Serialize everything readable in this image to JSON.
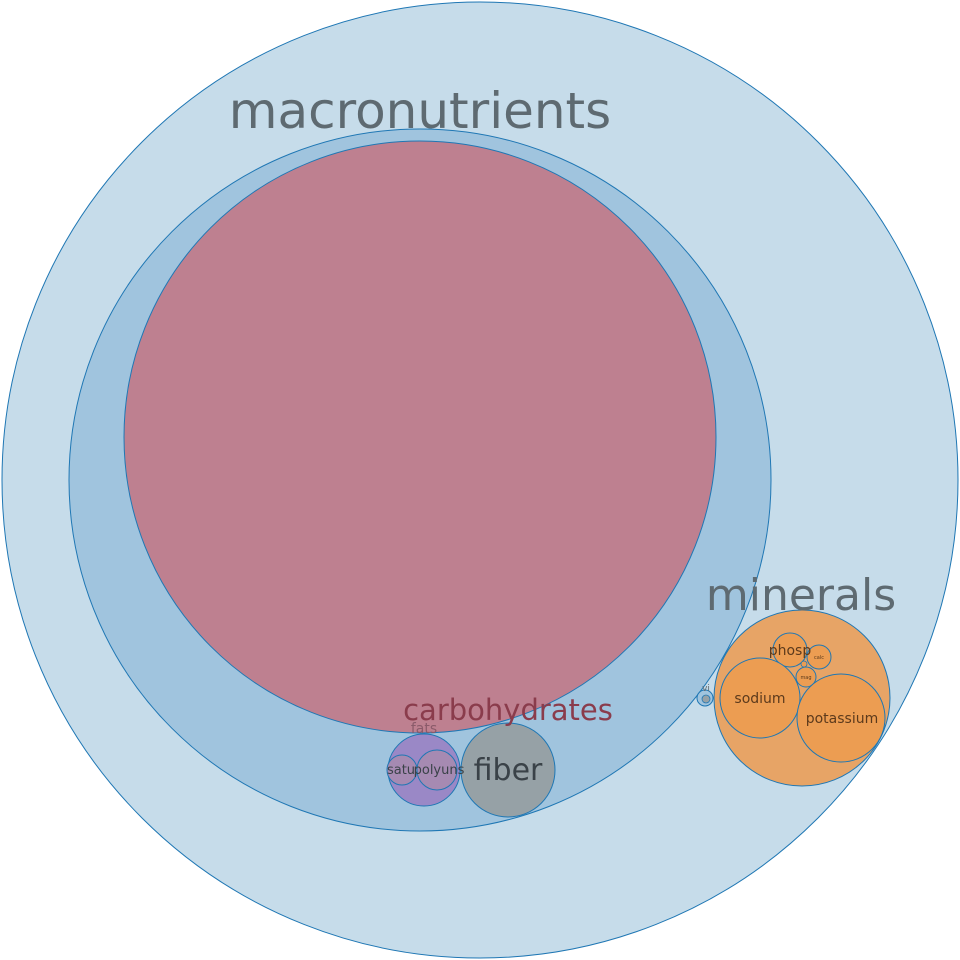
{
  "diagram": {
    "labels": {
      "macronutrients": "macronutrients",
      "carbohydrates": "carbohydrates",
      "fats": "fats",
      "saturated": "satu",
      "polyunsaturated": "polyuns",
      "fiber": "fiber",
      "minerals": "minerals",
      "phosphorus": "phosp",
      "sodium": "sodium",
      "potassium": "potassium",
      "calcium": "calc",
      "magnesium": "mag",
      "vitamins": "vi"
    },
    "colors": {
      "outer": "#c6dcea",
      "macronutrients": "#a0c4de",
      "sugars": "#be8090",
      "fats": "#9a88c6",
      "fats_inner": "#a68ab2",
      "fiber": "#96a1a6",
      "minerals": "#e7a466",
      "mineral_items": "#ec9d52",
      "stroke": "#1f77b4",
      "big_label": "#5e6a71",
      "carb_label": "#8a3c4c",
      "fats_label": "#8a5a6a",
      "dark_label": "#3a4248",
      "mineral_label": "#5c3a1c"
    }
  }
}
